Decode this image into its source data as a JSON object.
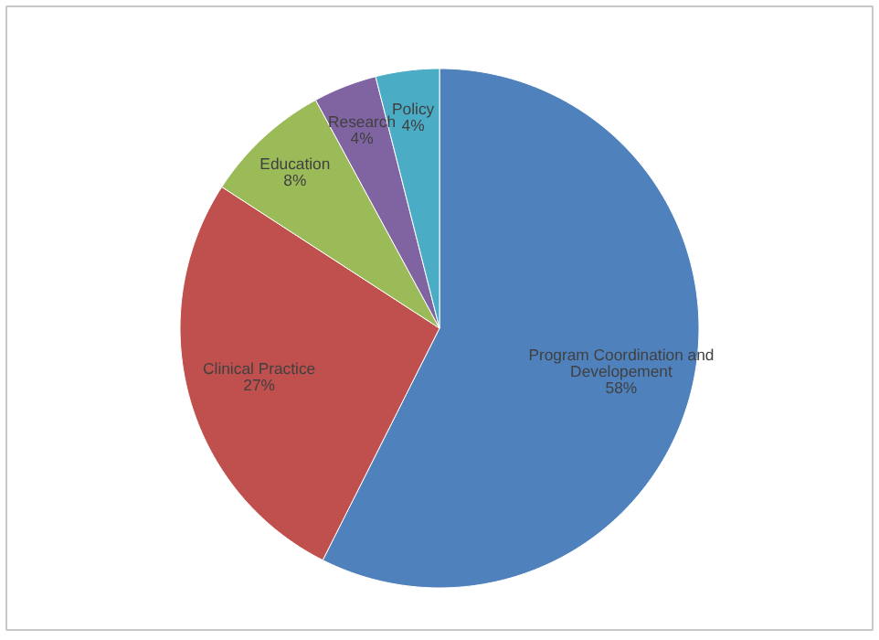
{
  "chart_data": {
    "type": "pie",
    "categories": [
      "Program Coordination and Developement",
      "Clinical Practice",
      "Education",
      "Research",
      "Policy"
    ],
    "values": [
      58,
      27,
      8,
      4,
      4
    ],
    "colors": [
      "#4f81bd",
      "#c0504d",
      "#9bbb59",
      "#8064a2",
      "#4bacc6"
    ],
    "value_labels": [
      "58%",
      "27%",
      "8%",
      "4%",
      "4%"
    ]
  }
}
